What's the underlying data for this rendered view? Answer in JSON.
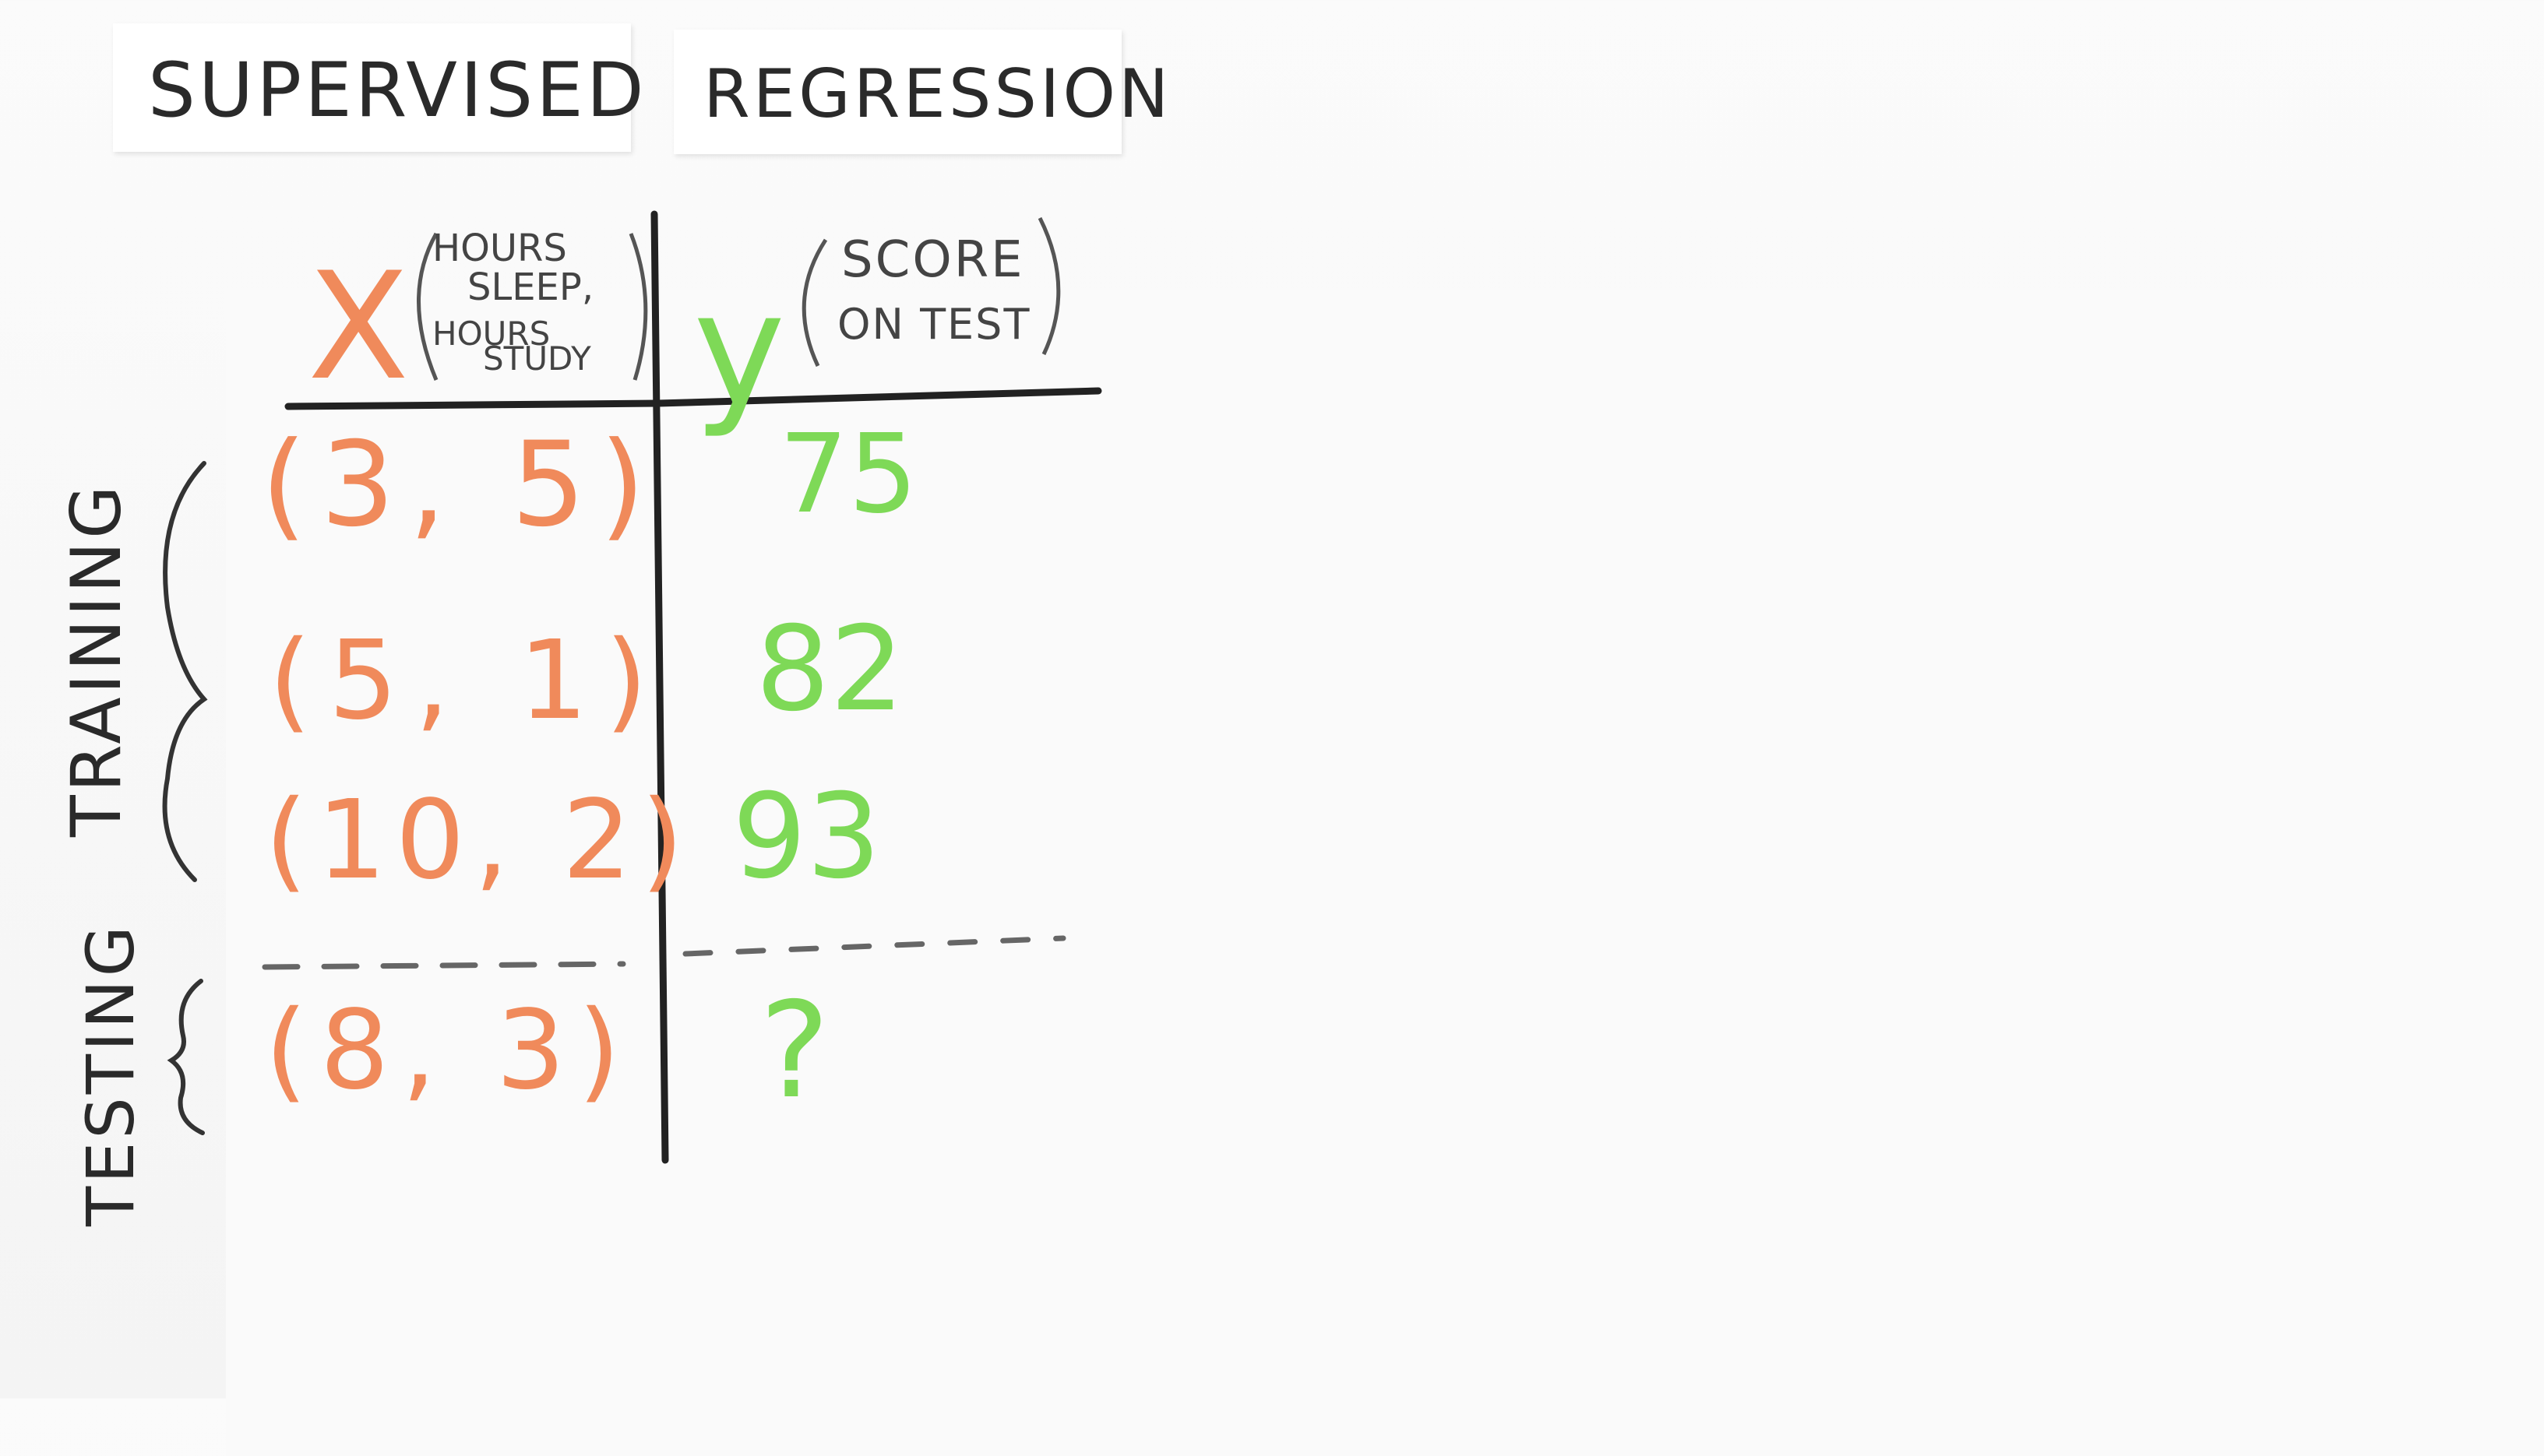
{
  "tags": {
    "type": "SUPERVISED",
    "task": "REGRESSION"
  },
  "table": {
    "x_symbol": "X",
    "x_desc_line1": "HOURS",
    "x_desc_line2": "SLEEP,",
    "x_desc_line3": "HOURS",
    "x_desc_line4": "STUDY",
    "y_symbol": "y",
    "y_desc_line1": "SCORE",
    "y_desc_line2": "ON TEST",
    "rows": [
      {
        "x": "(3, 5)",
        "y": "75"
      },
      {
        "x": "(5, 1)",
        "y": "82"
      },
      {
        "x": "(10, 2)",
        "y": "93"
      },
      {
        "x": "(8, 3)",
        "y": "?"
      }
    ]
  },
  "groups": {
    "training": "TRAINING",
    "testing": "TESTING"
  },
  "colors": {
    "ink": "#2a2a2a",
    "x_color": "#f08a5b",
    "y_color": "#7ed957",
    "divider": "#666666"
  }
}
